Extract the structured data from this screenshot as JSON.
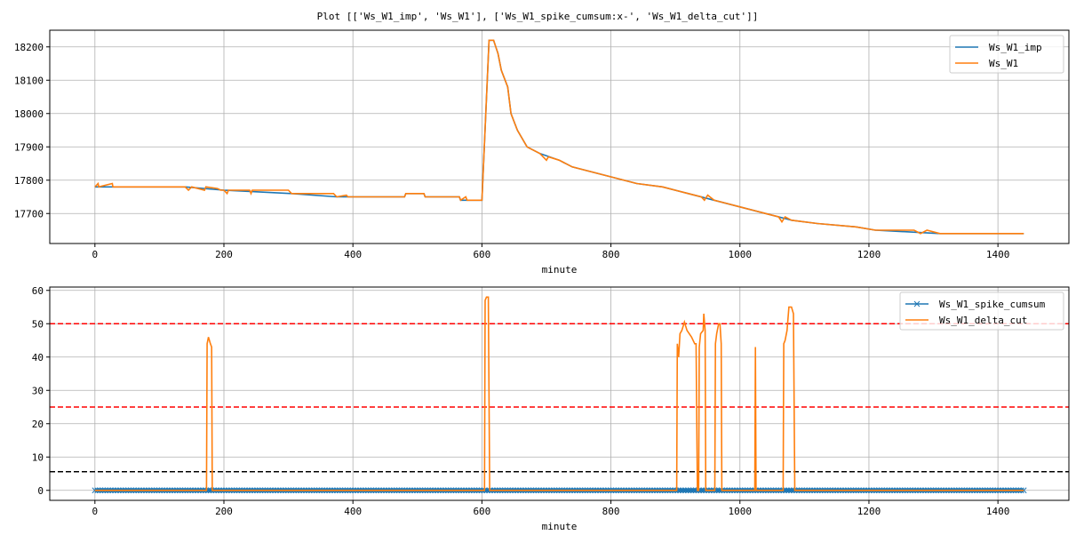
{
  "title": "Plot [['Ws_W1_imp', 'Ws_W1'], ['Ws_W1_spike_cumsum:x-', 'Ws_W1_delta_cut']]",
  "colors": {
    "blue": "#1f77b4",
    "orange": "#ff7f0e",
    "red": "#ff0000",
    "black": "#000000",
    "grid": "#b0b0b0"
  },
  "chart_data": [
    {
      "type": "line",
      "xlabel": "minute",
      "ylabel": "",
      "xlim": [
        -70,
        1510
      ],
      "ylim": [
        17610,
        18250
      ],
      "xticks": [
        0,
        200,
        400,
        600,
        800,
        1000,
        1200,
        1400
      ],
      "yticks": [
        17700,
        17800,
        17900,
        18000,
        18100,
        18200
      ],
      "grid": true,
      "legend": "top-right",
      "series": [
        {
          "name": "Ws_W1_imp",
          "color": "#1f77b4",
          "marker": "",
          "points": [
            [
              0,
              17780
            ],
            [
              140,
              17780
            ],
            [
              200,
              17770
            ],
            [
              305,
              17760
            ],
            [
              375,
              17750
            ],
            [
              480,
              17750
            ],
            [
              482,
              17760
            ],
            [
              510,
              17760
            ],
            [
              512,
              17750
            ],
            [
              565,
              17750
            ],
            [
              567,
              17740
            ],
            [
              600,
              17740
            ],
            [
              611,
              18220
            ],
            [
              618,
              18220
            ],
            [
              625,
              18180
            ],
            [
              630,
              18130
            ],
            [
              640,
              18080
            ],
            [
              645,
              18000
            ],
            [
              655,
              17950
            ],
            [
              670,
              17900
            ],
            [
              690,
              17880
            ],
            [
              720,
              17860
            ],
            [
              740,
              17840
            ],
            [
              760,
              17830
            ],
            [
              800,
              17810
            ],
            [
              840,
              17790
            ],
            [
              880,
              17780
            ],
            [
              920,
              17760
            ],
            [
              960,
              17740
            ],
            [
              1000,
              17720
            ],
            [
              1040,
              17700
            ],
            [
              1080,
              17680
            ],
            [
              1120,
              17670
            ],
            [
              1180,
              17660
            ],
            [
              1210,
              17650
            ],
            [
              1310,
              17640
            ],
            [
              1440,
              17640
            ]
          ]
        },
        {
          "name": "Ws_W1",
          "color": "#ff7f0e",
          "marker": "",
          "points": [
            [
              0,
              17780
            ],
            [
              5,
              17790
            ],
            [
              6,
              17780
            ],
            [
              27,
              17790
            ],
            [
              28,
              17780
            ],
            [
              140,
              17780
            ],
            [
              145,
              17770
            ],
            [
              150,
              17780
            ],
            [
              170,
              17770
            ],
            [
              172,
              17780
            ],
            [
              190,
              17775
            ],
            [
              195,
              17770
            ],
            [
              200,
              17770
            ],
            [
              205,
              17760
            ],
            [
              207,
              17770
            ],
            [
              240,
              17770
            ],
            [
              242,
              17760
            ],
            [
              244,
              17770
            ],
            [
              300,
              17770
            ],
            [
              305,
              17760
            ],
            [
              370,
              17760
            ],
            [
              375,
              17750
            ],
            [
              390,
              17755
            ],
            [
              392,
              17750
            ],
            [
              480,
              17750
            ],
            [
              482,
              17760
            ],
            [
              510,
              17760
            ],
            [
              512,
              17750
            ],
            [
              565,
              17750
            ],
            [
              567,
              17740
            ],
            [
              575,
              17750
            ],
            [
              577,
              17740
            ],
            [
              600,
              17740
            ],
            [
              611,
              18220
            ],
            [
              618,
              18220
            ],
            [
              625,
              18180
            ],
            [
              630,
              18130
            ],
            [
              640,
              18080
            ],
            [
              645,
              18000
            ],
            [
              655,
              17950
            ],
            [
              670,
              17900
            ],
            [
              690,
              17880
            ],
            [
              700,
              17860
            ],
            [
              703,
              17870
            ],
            [
              720,
              17860
            ],
            [
              740,
              17840
            ],
            [
              760,
              17830
            ],
            [
              800,
              17810
            ],
            [
              840,
              17790
            ],
            [
              880,
              17780
            ],
            [
              920,
              17760
            ],
            [
              940,
              17750
            ],
            [
              945,
              17740
            ],
            [
              950,
              17755
            ],
            [
              960,
              17740
            ],
            [
              980,
              17730
            ],
            [
              1000,
              17720
            ],
            [
              1020,
              17710
            ],
            [
              1040,
              17700
            ],
            [
              1060,
              17690
            ],
            [
              1065,
              17675
            ],
            [
              1070,
              17690
            ],
            [
              1080,
              17680
            ],
            [
              1120,
              17670
            ],
            [
              1180,
              17660
            ],
            [
              1210,
              17650
            ],
            [
              1270,
              17650
            ],
            [
              1280,
              17640
            ],
            [
              1290,
              17650
            ],
            [
              1310,
              17640
            ],
            [
              1440,
              17640
            ]
          ]
        }
      ]
    },
    {
      "type": "line",
      "xlabel": "minute",
      "ylabel": "",
      "xlim": [
        -70,
        1510
      ],
      "ylim": [
        -3,
        61
      ],
      "xticks": [
        0,
        200,
        400,
        600,
        800,
        1000,
        1200,
        1400
      ],
      "yticks": [
        0,
        10,
        20,
        30,
        40,
        50,
        60
      ],
      "grid": true,
      "legend": "top-right",
      "hlines": [
        {
          "y": 50,
          "color": "#ff0000",
          "style": "dashed"
        },
        {
          "y": 25,
          "color": "#ff0000",
          "style": "dashed"
        },
        {
          "y": 5.6,
          "color": "#000000",
          "style": "dashed"
        }
      ],
      "series": [
        {
          "name": "Ws_W1_spike_cumsum",
          "color": "#1f77b4",
          "marker": "x",
          "points": [
            [
              0,
              0
            ],
            [
              1440,
              0
            ]
          ]
        },
        {
          "name": "Ws_W1_delta_cut",
          "color": "#ff7f0e",
          "marker": "",
          "points": [
            [
              0,
              0
            ],
            [
              173,
              0
            ],
            [
              174,
              44
            ],
            [
              176,
              46
            ],
            [
              179,
              44
            ],
            [
              181,
              43
            ],
            [
              182,
              0
            ],
            [
              604,
              0
            ],
            [
              605,
              57
            ],
            [
              607,
              58
            ],
            [
              610,
              58
            ],
            [
              612,
              0
            ],
            [
              902,
              0
            ],
            [
              903,
              44
            ],
            [
              905,
              40
            ],
            [
              907,
              47
            ],
            [
              910,
              48
            ],
            [
              914,
              50.5
            ],
            [
              918,
              48
            ],
            [
              925,
              46
            ],
            [
              930,
              44
            ],
            [
              932,
              44
            ],
            [
              934,
              0
            ],
            [
              936,
              0
            ],
            [
              937,
              43
            ],
            [
              939,
              47
            ],
            [
              943,
              48
            ],
            [
              944,
              53
            ],
            [
              946,
              48
            ],
            [
              947,
              0
            ],
            [
              961,
              0
            ],
            [
              962,
              44
            ],
            [
              964,
              47
            ],
            [
              967,
              50
            ],
            [
              969,
              50
            ],
            [
              971,
              44
            ],
            [
              972,
              0
            ],
            [
              1023,
              0
            ],
            [
              1024,
              43
            ],
            [
              1025,
              0
            ],
            [
              1067,
              0
            ],
            [
              1068,
              44
            ],
            [
              1070,
              45
            ],
            [
              1073,
              48
            ],
            [
              1076,
              55
            ],
            [
              1080,
              55
            ],
            [
              1083,
              53
            ],
            [
              1085,
              0
            ],
            [
              1440,
              0
            ]
          ]
        }
      ]
    }
  ]
}
